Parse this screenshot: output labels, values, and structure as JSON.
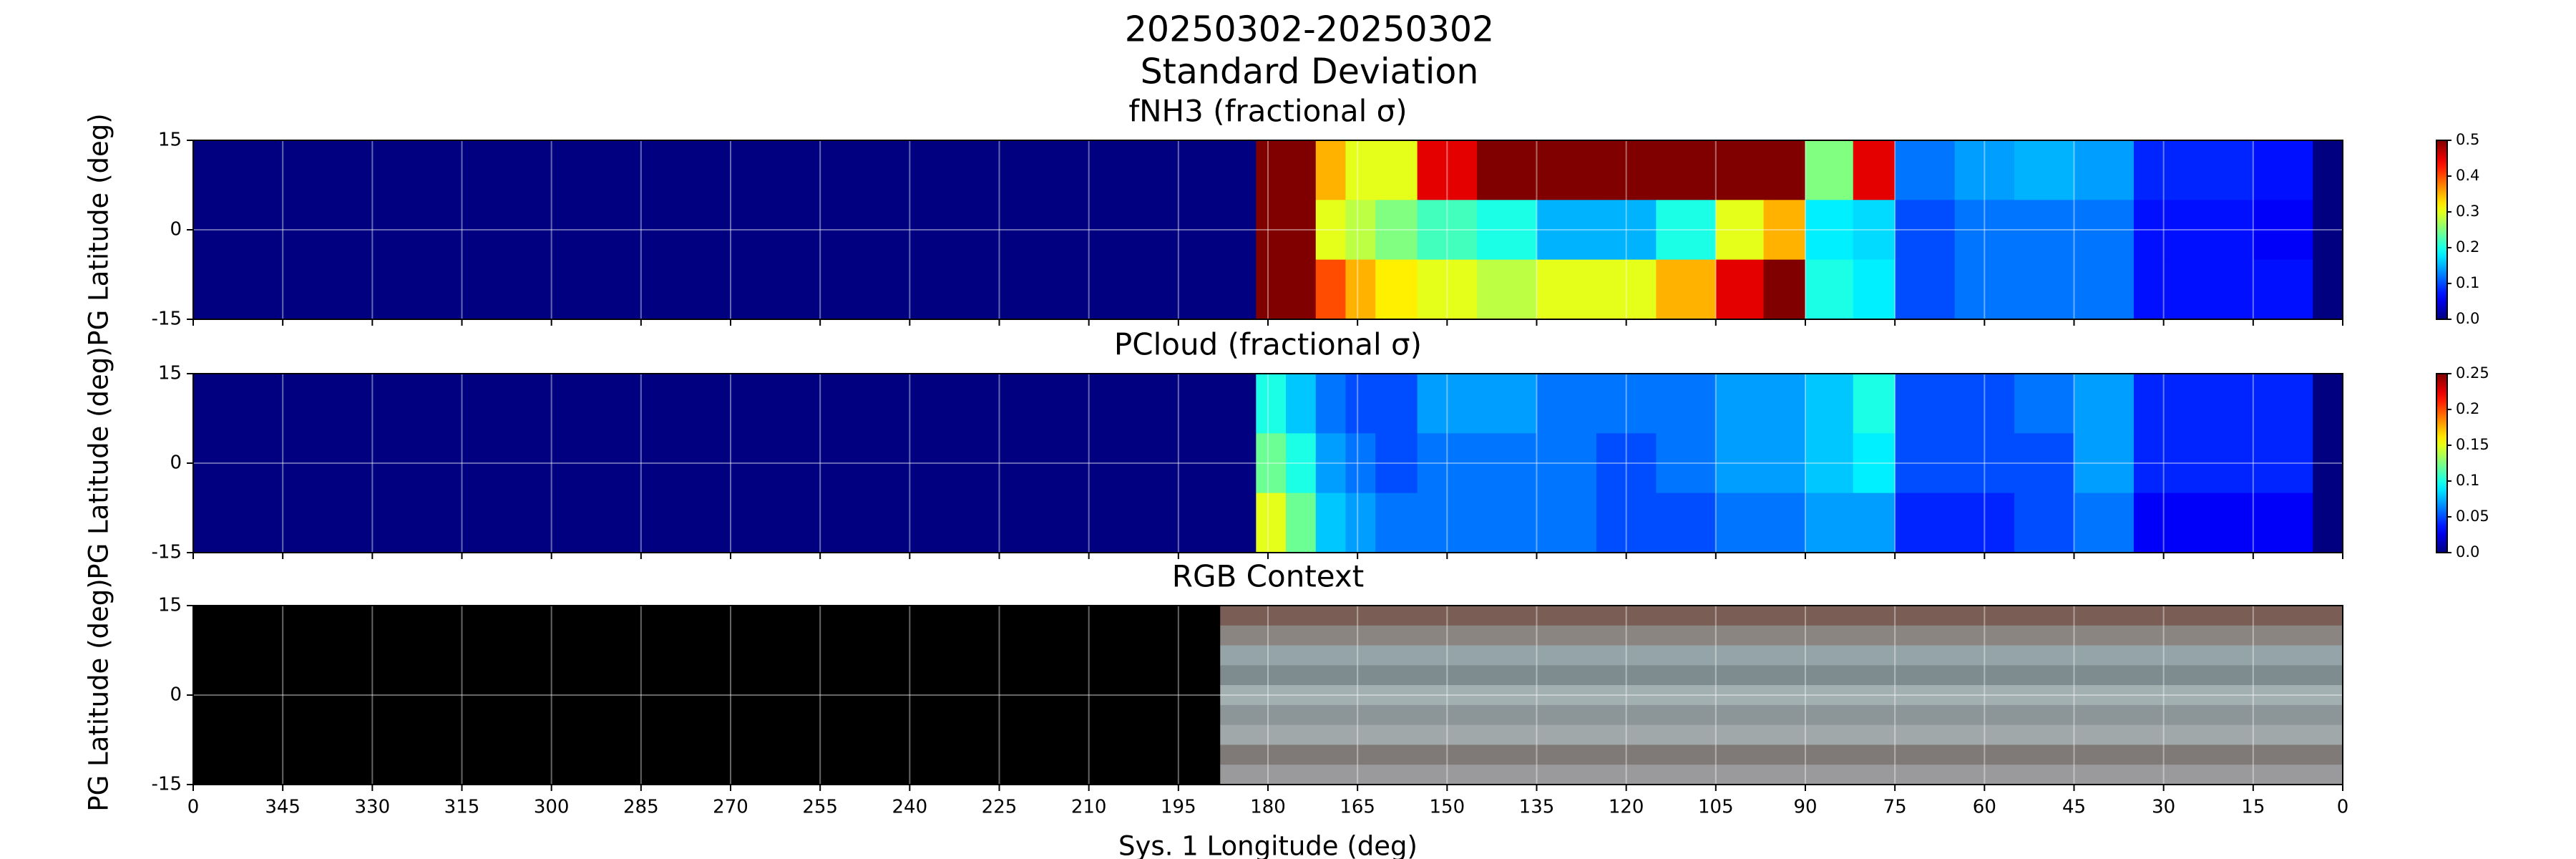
{
  "figure": {
    "title_lines": [
      "20250302-20250302",
      "Standard Deviation"
    ]
  },
  "chart_data": [
    {
      "type": "heatmap",
      "title": "fNH3 (fractional σ)",
      "ylabel": "PG Latitude (deg)",
      "x_edges": [
        360,
        182,
        177,
        172,
        167,
        162,
        155,
        145,
        135,
        125,
        115,
        105,
        97,
        90,
        82,
        75,
        65,
        55,
        45,
        35,
        25,
        15,
        5,
        0
      ],
      "y_edges": [
        15,
        5,
        -5,
        -15
      ],
      "values": [
        [
          0,
          0.5,
          0.5,
          0.35,
          0.3,
          0.3,
          0.45,
          0.5,
          0.5,
          0.5,
          0.5,
          0.5,
          0.5,
          0.25,
          0.45,
          0.12,
          0.14,
          0.15,
          0.14,
          0.08,
          0.08,
          0.07,
          0
        ],
        [
          0,
          0.5,
          0.5,
          0.3,
          0.28,
          0.25,
          0.22,
          0.2,
          0.15,
          0.15,
          0.2,
          0.3,
          0.35,
          0.18,
          0.17,
          0.1,
          0.12,
          0.12,
          0.12,
          0.07,
          0.07,
          0.06,
          0
        ],
        [
          0,
          0.5,
          0.5,
          0.4,
          0.35,
          0.32,
          0.3,
          0.28,
          0.3,
          0.3,
          0.35,
          0.45,
          0.5,
          0.2,
          0.18,
          0.1,
          0.12,
          0.12,
          0.12,
          0.07,
          0.07,
          0.07,
          0
        ]
      ],
      "colormap": "jet",
      "clim": [
        0,
        0.5
      ],
      "cticks": [
        {
          "value": 0,
          "label": "0.0"
        },
        0.1,
        0.2,
        0.3,
        0.4,
        0.5
      ],
      "xlim": [
        360,
        0
      ],
      "xticks": [
        {
          "value": 360,
          "label": "0"
        },
        345,
        330,
        315,
        300,
        285,
        270,
        255,
        240,
        225,
        210,
        195,
        180,
        165,
        150,
        135,
        120,
        105,
        90,
        75,
        60,
        45,
        30,
        15,
        0
      ],
      "ylim": [
        -15,
        15
      ],
      "yticks": [
        -15,
        0,
        15
      ],
      "grid": true
    },
    {
      "type": "heatmap",
      "title": "PCloud (fractional σ)",
      "ylabel": "PG Latitude (deg)",
      "x_edges": [
        360,
        182,
        177,
        172,
        167,
        162,
        155,
        145,
        135,
        125,
        115,
        105,
        97,
        90,
        82,
        75,
        65,
        55,
        45,
        35,
        25,
        15,
        5,
        0
      ],
      "y_edges": [
        15,
        5,
        -5,
        -15
      ],
      "values": [
        [
          0,
          0.1,
          0.08,
          0.06,
          0.05,
          0.05,
          0.07,
          0.07,
          0.06,
          0.06,
          0.06,
          0.07,
          0.07,
          0.08,
          0.1,
          0.05,
          0.05,
          0.06,
          0.07,
          0.04,
          0.04,
          0.04,
          0
        ],
        [
          0,
          0.12,
          0.1,
          0.07,
          0.06,
          0.05,
          0.06,
          0.06,
          0.06,
          0.05,
          0.06,
          0.07,
          0.07,
          0.08,
          0.09,
          0.05,
          0.05,
          0.05,
          0.07,
          0.04,
          0.04,
          0.04,
          0
        ],
        [
          0,
          0.15,
          0.12,
          0.08,
          0.07,
          0.06,
          0.06,
          0.06,
          0.06,
          0.05,
          0.05,
          0.06,
          0.06,
          0.07,
          0.07,
          0.04,
          0.04,
          0.05,
          0.06,
          0.03,
          0.03,
          0.03,
          0
        ]
      ],
      "colormap": "jet",
      "clim": [
        0,
        0.25
      ],
      "cticks": [
        {
          "value": 0,
          "label": "0.0"
        },
        0.05,
        0.1,
        0.15,
        0.2,
        0.25
      ],
      "xlim": [
        360,
        0
      ],
      "xticks": [
        {
          "value": 360,
          "label": "0"
        },
        345,
        330,
        315,
        300,
        285,
        270,
        255,
        240,
        225,
        210,
        195,
        180,
        165,
        150,
        135,
        120,
        105,
        90,
        75,
        60,
        45,
        30,
        15,
        0
      ],
      "ylim": [
        -15,
        15
      ],
      "yticks": [
        -15,
        0,
        15
      ],
      "grid": true
    },
    {
      "type": "image",
      "title": "RGB Context",
      "ylabel": "PG Latitude (deg)",
      "xlabel": "Sys. 1 Longitude (deg)",
      "image_xlim": [
        188,
        0
      ],
      "background": "#000000",
      "bands": [
        "#7a5e55",
        "#8a8580",
        "#95a4a8",
        "#7e8c8f",
        "#a3b0b2",
        "#8c9597",
        "#a0a8aa",
        "#7f7a78",
        "#9a9a9c"
      ],
      "xlim": [
        360,
        0
      ],
      "xticks": [
        {
          "value": 360,
          "label": "0"
        },
        345,
        330,
        315,
        300,
        285,
        270,
        255,
        240,
        225,
        210,
        195,
        180,
        165,
        150,
        135,
        120,
        105,
        90,
        75,
        60,
        45,
        30,
        15,
        0
      ],
      "ylim": [
        -15,
        15
      ],
      "yticks": [
        -15,
        0,
        15
      ],
      "grid": true
    }
  ]
}
